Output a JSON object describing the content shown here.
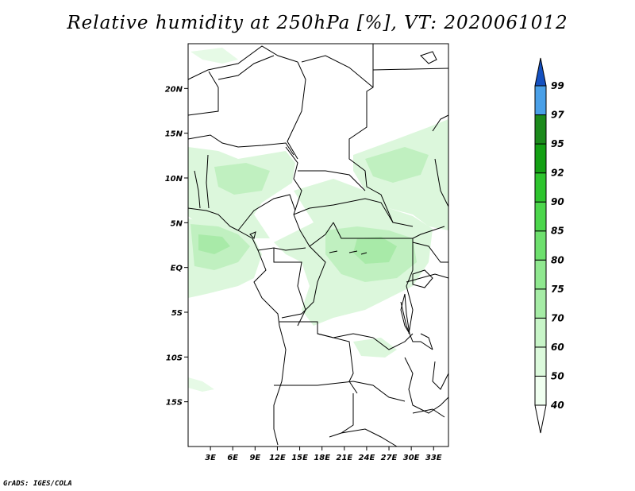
{
  "title": "Relative humidity at 250hPa [%], VT: 2020061012",
  "credit": "GrADS: IGES/COLA",
  "map": {
    "lon_range": [
      0,
      35
    ],
    "lat_range": [
      -20,
      25
    ],
    "lon_ticks": [
      {
        "value": 3,
        "label": "3E"
      },
      {
        "value": 6,
        "label": "6E"
      },
      {
        "value": 9,
        "label": "9E"
      },
      {
        "value": 12,
        "label": "12E"
      },
      {
        "value": 15,
        "label": "15E"
      },
      {
        "value": 18,
        "label": "18E"
      },
      {
        "value": 21,
        "label": "21E"
      },
      {
        "value": 24,
        "label": "24E"
      },
      {
        "value": 27,
        "label": "27E"
      },
      {
        "value": 30,
        "label": "30E"
      },
      {
        "value": 33,
        "label": "33E"
      }
    ],
    "lat_ticks": [
      {
        "value": 20,
        "label": "20N"
      },
      {
        "value": 15,
        "label": "15N"
      },
      {
        "value": 10,
        "label": "10N"
      },
      {
        "value": 5,
        "label": "5N"
      },
      {
        "value": 0,
        "label": "EQ"
      },
      {
        "value": -5,
        "label": "5S"
      },
      {
        "value": -10,
        "label": "10S"
      },
      {
        "value": -15,
        "label": "15S"
      }
    ]
  },
  "colorbar": {
    "labels": [
      "40",
      "50",
      "60",
      "70",
      "75",
      "80",
      "85",
      "90",
      "92",
      "95",
      "97",
      "99"
    ],
    "colors": [
      "#f0fff0",
      "#dcfadc",
      "#c8f5c8",
      "#a6eca6",
      "#90e890",
      "#6ee06e",
      "#4cd64c",
      "#2ec42e",
      "#14a014",
      "#1c8a1c",
      "#4aa0e8",
      "#1e6ed8",
      "#1450c0"
    ],
    "low_color": "#ffffff"
  },
  "humidity_regions": [
    {
      "level": 40,
      "color": "#dcf7dc"
    },
    {
      "level": 60,
      "color": "#c0f0c0"
    },
    {
      "level": 70,
      "color": "#a8eaa8"
    }
  ]
}
